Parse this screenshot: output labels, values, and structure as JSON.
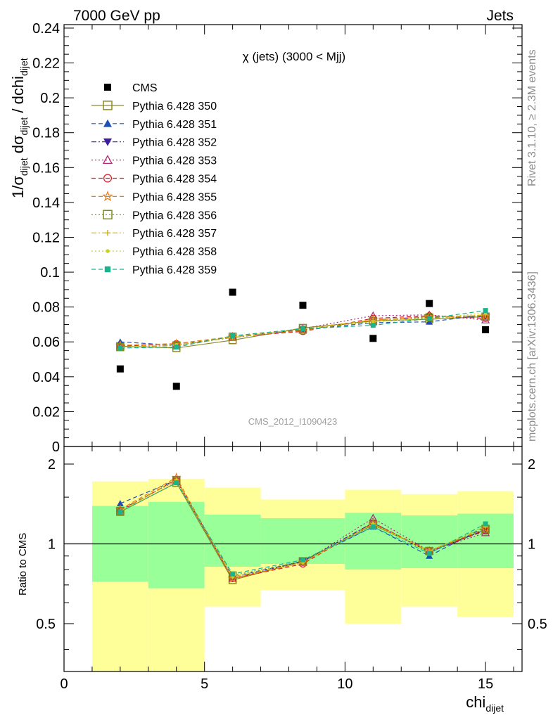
{
  "header": {
    "left_label": "7000 GeV pp",
    "right_label": "Jets"
  },
  "side_labels": {
    "rivet": "Rivet 3.1.10, ≥ 2.3M events",
    "mcplots": "mcplots.cern.ch [arXiv:1306.3436]"
  },
  "chart_data": [
    {
      "type": "scatter",
      "title": "χ (jets) (3000 < Mjj)",
      "watermark": "CMS_2012_I1090423",
      "ylabel": "1/σdijet dσdijet / dchidijet",
      "ylabel_parts": {
        "a": "1/σ",
        "a_sub": "dijet",
        "b": " dσ",
        "b_sub": "dijet",
        "c": " / dchi",
        "c_sub": "dijet"
      },
      "xlim": [
        0,
        16.3
      ],
      "ylim": [
        0,
        0.242
      ],
      "yticks": [
        0,
        0.02,
        0.04,
        0.06,
        0.08,
        0.1,
        0.12,
        0.14,
        0.16,
        0.18,
        0.2,
        0.22,
        0.24
      ],
      "ytick_labels": [
        "0",
        "0.02",
        "0.04",
        "0.06",
        "0.08",
        "0.1",
        "0.12",
        "0.14",
        "0.16",
        "0.18",
        "0.2",
        "0.22",
        "0.24"
      ],
      "legend_position": "top-left",
      "data": {
        "name": "CMS",
        "x": [
          2,
          4,
          6,
          8.5,
          11,
          13,
          15
        ],
        "y": [
          0.0445,
          0.0345,
          0.0885,
          0.081,
          0.062,
          0.082,
          0.067
        ]
      },
      "series": [
        {
          "name": "Pythia 6.428 350",
          "color": "#8c8c1e",
          "marker": "open-square",
          "dash": "solid",
          "y": [
            0.0575,
            0.0565,
            0.061,
            0.068,
            0.072,
            0.073,
            0.0745
          ]
        },
        {
          "name": "Pythia 6.428 351",
          "color": "#1f4fb4",
          "marker": "filled-triangle-up",
          "dash": "dashed",
          "y": [
            0.06,
            0.058,
            0.063,
            0.067,
            0.071,
            0.0715,
            0.0755
          ]
        },
        {
          "name": "Pythia 6.428 352",
          "color": "#3c1e9e",
          "marker": "filled-triangle-down",
          "dash": "dashdot",
          "y": [
            0.057,
            0.058,
            0.0625,
            0.067,
            0.0725,
            0.0745,
            0.0745
          ]
        },
        {
          "name": "Pythia 6.428 353",
          "color": "#b4287a",
          "marker": "open-triangle-up",
          "dash": "dotted",
          "y": [
            0.058,
            0.0585,
            0.0625,
            0.0675,
            0.075,
            0.0755,
            0.0725
          ]
        },
        {
          "name": "Pythia 6.428 354",
          "color": "#d21e28",
          "marker": "open-circle",
          "dash": "dashed",
          "y": [
            0.0575,
            0.059,
            0.063,
            0.066,
            0.0735,
            0.075,
            0.0735
          ]
        },
        {
          "name": "Pythia 6.428 355",
          "color": "#ee7a14",
          "marker": "open-star",
          "dash": "dashed",
          "y": [
            0.058,
            0.059,
            0.063,
            0.0665,
            0.0725,
            0.0745,
            0.075
          ]
        },
        {
          "name": "Pythia 6.428 356",
          "color": "#7a8c14",
          "marker": "open-square-small",
          "dash": "dotted",
          "y": [
            0.057,
            0.058,
            0.063,
            0.067,
            0.072,
            0.074,
            0.0745
          ]
        },
        {
          "name": "Pythia 6.428 357",
          "color": "#d4b414",
          "marker": "star-small",
          "dash": "dashdot",
          "y": [
            0.057,
            0.058,
            0.0625,
            0.0675,
            0.0725,
            0.0735,
            0.0755
          ]
        },
        {
          "name": "Pythia 6.428 358",
          "color": "#c8d21e",
          "marker": "dot-small",
          "dash": "dotted",
          "y": [
            0.057,
            0.0585,
            0.063,
            0.0675,
            0.0715,
            0.0735,
            0.0765
          ]
        },
        {
          "name": "Pythia 6.428 359",
          "color": "#19b48c",
          "marker": "filled-square-small",
          "dash": "dashed",
          "y": [
            0.0565,
            0.057,
            0.0635,
            0.0675,
            0.0695,
            0.0735,
            0.078
          ]
        }
      ],
      "x": [
        2,
        4,
        6,
        8.5,
        11,
        13,
        15
      ]
    },
    {
      "type": "line",
      "ylabel": "Ratio to CMS",
      "xlabel": "chidijet",
      "xlabel_parts": {
        "main": "chi",
        "sub": "dijet"
      },
      "xlim": [
        0,
        16.3
      ],
      "ylim": [
        0.33,
        2.33
      ],
      "xticks": [
        0,
        5,
        10,
        15
      ],
      "xtick_labels": [
        "0",
        "5",
        "10",
        "15"
      ],
      "yticks": [
        0.5,
        1,
        2
      ],
      "ytick_labels": [
        "0.5",
        "1",
        "2"
      ],
      "bins": [
        [
          1,
          3
        ],
        [
          3,
          5
        ],
        [
          5,
          7
        ],
        [
          7,
          10
        ],
        [
          10,
          12
        ],
        [
          12,
          14
        ],
        [
          14,
          16
        ]
      ],
      "band_inner": [
        [
          0.72,
          1.39
        ],
        [
          0.68,
          1.44
        ],
        [
          0.82,
          1.29
        ],
        [
          0.84,
          1.25
        ],
        [
          0.8,
          1.31
        ],
        [
          0.81,
          1.28
        ],
        [
          0.81,
          1.3
        ]
      ],
      "band_outer": [
        [
          0.0,
          1.72
        ],
        [
          0.0,
          1.76
        ],
        [
          0.58,
          1.63
        ],
        [
          0.67,
          1.47
        ],
        [
          0.5,
          1.6
        ],
        [
          0.58,
          1.54
        ],
        [
          0.53,
          1.58
        ]
      ],
      "band_colors": {
        "inner": "#99ff99",
        "outer": "#ffff99"
      },
      "reference_line": 1,
      "series": [
        {
          "name": "Pythia 6.428 350",
          "y": [
            1.32,
            1.7,
            0.73,
            0.86,
            1.18,
            0.94,
            1.13
          ]
        },
        {
          "name": "Pythia 6.428 351",
          "y": [
            1.42,
            1.74,
            0.75,
            0.86,
            1.16,
            0.9,
            1.16
          ]
        },
        {
          "name": "Pythia 6.428 352",
          "y": [
            1.34,
            1.74,
            0.74,
            0.86,
            1.2,
            0.93,
            1.13
          ]
        },
        {
          "name": "Pythia 6.428 353",
          "y": [
            1.34,
            1.73,
            0.74,
            0.85,
            1.25,
            0.94,
            1.1
          ]
        },
        {
          "name": "Pythia 6.428 354",
          "y": [
            1.33,
            1.75,
            0.74,
            0.84,
            1.2,
            0.94,
            1.12
          ]
        },
        {
          "name": "Pythia 6.428 355",
          "y": [
            1.35,
            1.78,
            0.74,
            0.85,
            1.19,
            0.94,
            1.14
          ]
        },
        {
          "name": "Pythia 6.428 356",
          "y": [
            1.33,
            1.74,
            0.76,
            0.86,
            1.18,
            0.94,
            1.14
          ]
        },
        {
          "name": "Pythia 6.428 357",
          "y": [
            1.33,
            1.74,
            0.75,
            0.85,
            1.19,
            0.94,
            1.16
          ]
        },
        {
          "name": "Pythia 6.428 358",
          "y": [
            1.33,
            1.74,
            0.75,
            0.85,
            1.19,
            0.93,
            1.17
          ]
        },
        {
          "name": "Pythia 6.428 359",
          "y": [
            1.32,
            1.7,
            0.77,
            0.87,
            1.16,
            0.92,
            1.19
          ]
        }
      ],
      "x": [
        2,
        4,
        6,
        8.5,
        11,
        13,
        15
      ]
    }
  ]
}
